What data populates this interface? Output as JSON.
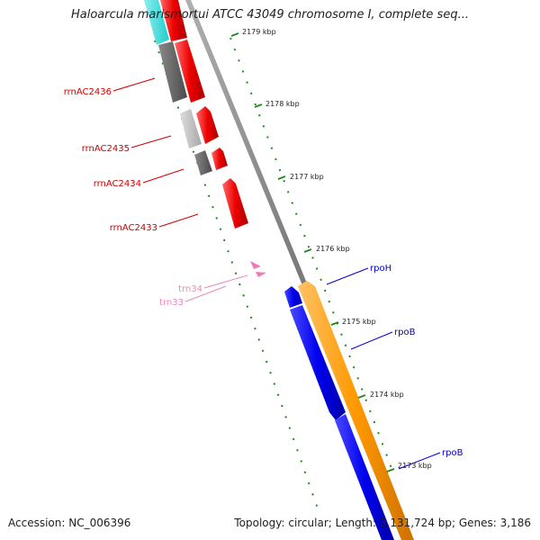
{
  "title": "Haloarcula marismortui ATCC 43049 chromosome I, complete seq...",
  "footer": {
    "accession": "Accession: NC_006396",
    "summary": "Topology: circular; Length: 3,131,724 bp; Genes: 3,186"
  },
  "ticks": [
    {
      "label": "2179 kbp"
    },
    {
      "label": "2178 kbp"
    },
    {
      "label": "2177 kbp"
    },
    {
      "label": "2176 kbp"
    },
    {
      "label": "2175 kbp"
    },
    {
      "label": "2174 kbp"
    },
    {
      "label": "2173 kbp"
    }
  ],
  "features": {
    "rrn": [
      {
        "label": "rrnAC2436"
      },
      {
        "label": "rrnAC2435"
      },
      {
        "label": "rrnAC2434"
      },
      {
        "label": "rrnAC2433"
      }
    ],
    "trn": [
      {
        "label": "trn34"
      },
      {
        "label": "trn33"
      }
    ],
    "genes": [
      {
        "label": "rpoH"
      },
      {
        "label": "rpoB"
      },
      {
        "label": "rpoB"
      }
    ]
  },
  "colors": {
    "rrn_label": "#cc0000",
    "trn_label": "#ee88bb",
    "gene_label": "#0000cc",
    "red_feature": "#ee0000",
    "blue_feature": "#0000ee",
    "orange_feature": "#ff9900",
    "cyan_feature": "#33dddd",
    "dark_gray_feature": "#666666",
    "light_gray_feature": "#bbbbbb",
    "backbone": "#888888",
    "tick_green": "#228822"
  }
}
